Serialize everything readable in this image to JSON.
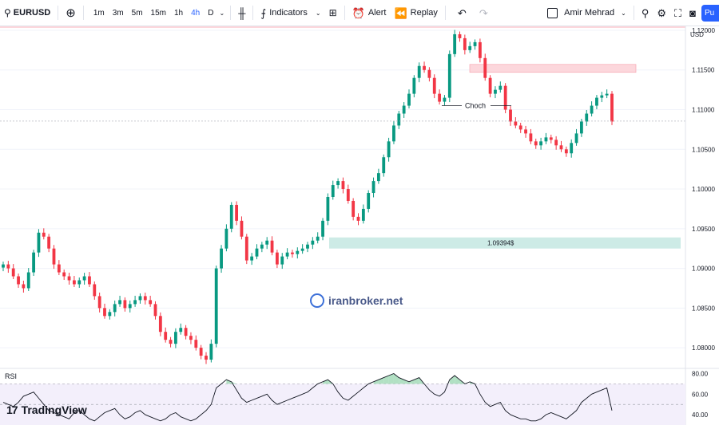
{
  "toolbar": {
    "symbol": "EURUSD",
    "timeframes": [
      "1m",
      "3m",
      "5m",
      "15m",
      "1h",
      "4h",
      "D"
    ],
    "active_timeframe": "4h",
    "indicators_label": "Indicators",
    "alert_label": "Alert",
    "replay_label": "Replay",
    "user_name": "Amir Mehrad",
    "publish_label": "Pu",
    "icons": [
      "search-icon",
      "add-symbol-icon",
      "chart-type-icon",
      "indicators-icon",
      "templates-icon",
      "alert-icon",
      "replay-icon",
      "undo-icon",
      "redo-icon",
      "layout-checkbox",
      "zoom-icon",
      "settings-icon",
      "fullscreen-icon",
      "camera-icon"
    ]
  },
  "chart_data": {
    "type": "candlestick",
    "currency": "USD",
    "y_ticks": [
      "1.12000",
      "1.11500",
      "1.11000",
      "1.10500",
      "1.10000",
      "1.09500",
      "1.09000",
      "1.08500",
      "1.08000"
    ],
    "ylim": [
      1.0775,
      1.1205
    ],
    "last_price": "1.10856",
    "annotations": {
      "choch_label": "Choch",
      "zone_price_label": "1.09394$",
      "supply_zone": [
        1.1147,
        1.1157
      ],
      "demand_zone": [
        1.0925,
        1.0939
      ],
      "top_zone": [
        1.1203,
        1.1222
      ]
    },
    "close_path": [
      1.0905,
      1.09,
      1.089,
      1.088,
      1.0875,
      1.0895,
      1.092,
      1.0945,
      1.094,
      1.0925,
      1.0905,
      1.0895,
      1.089,
      1.0885,
      1.088,
      1.0885,
      1.089,
      1.088,
      1.0865,
      1.085,
      1.084,
      1.0845,
      1.0855,
      1.086,
      1.085,
      1.0855,
      1.086,
      1.0865,
      1.086,
      1.0855,
      1.084,
      1.082,
      1.081,
      1.0805,
      1.082,
      1.0825,
      1.0815,
      1.081,
      1.08,
      1.079,
      1.0785,
      1.0805,
      1.09,
      1.0925,
      1.095,
      1.098,
      1.096,
      1.094,
      1.091,
      1.0915,
      1.0925,
      1.093,
      1.0935,
      1.092,
      1.0905,
      1.0915,
      1.092,
      1.0918,
      1.0922,
      1.0925,
      1.093,
      1.0935,
      1.094,
      1.096,
      1.099,
      1.1005,
      1.101,
      1.1,
      1.0985,
      1.0965,
      1.096,
      1.0975,
      1.0995,
      1.101,
      1.102,
      1.104,
      1.106,
      1.108,
      1.1095,
      1.1105,
      1.112,
      1.114,
      1.1155,
      1.115,
      1.114,
      1.112,
      1.111,
      1.1115,
      1.117,
      1.1195,
      1.119,
      1.1175,
      1.118,
      1.1185,
      1.1165,
      1.114,
      1.112,
      1.1125,
      1.113,
      1.11,
      1.1085,
      1.108,
      1.1075,
      1.107,
      1.106,
      1.1055,
      1.106,
      1.1065,
      1.1062,
      1.1055,
      1.105,
      1.1045,
      1.1058,
      1.107,
      1.1085,
      1.1095,
      1.1105,
      1.1115,
      1.1118,
      1.112,
      1.1085
    ],
    "rsi": {
      "label": "RSI",
      "y_ticks": [
        "80.00",
        "60.00",
        "40.00"
      ],
      "ylim": [
        30,
        85
      ],
      "upper": 70,
      "lower": 30,
      "values": [
        52,
        50,
        48,
        52,
        58,
        60,
        62,
        56,
        50,
        44,
        42,
        40,
        38,
        36,
        42,
        44,
        40,
        36,
        34,
        38,
        42,
        44,
        46,
        40,
        36,
        38,
        42,
        44,
        40,
        38,
        36,
        34,
        36,
        40,
        42,
        38,
        36,
        34,
        36,
        40,
        44,
        50,
        66,
        70,
        74,
        72,
        64,
        56,
        52,
        54,
        56,
        58,
        60,
        54,
        50,
        52,
        54,
        56,
        58,
        60,
        62,
        66,
        70,
        72,
        74,
        70,
        62,
        56,
        54,
        58,
        62,
        66,
        70,
        72,
        74,
        76,
        78,
        80,
        76,
        74,
        72,
        74,
        76,
        70,
        64,
        60,
        58,
        62,
        74,
        78,
        74,
        70,
        72,
        70,
        60,
        52,
        48,
        50,
        52,
        44,
        40,
        38,
        36,
        36,
        34,
        34,
        36,
        40,
        42,
        40,
        38,
        36,
        40,
        44,
        52,
        56,
        60,
        62,
        64,
        66,
        44
      ]
    }
  },
  "watermark": {
    "text": "iranbroker.net"
  },
  "footer": {
    "brand": "TradingView"
  },
  "colors": {
    "up": "#089981",
    "down": "#f23645",
    "grid": "#f0f3fa",
    "supply_zone": "#fcd7dc",
    "demand_zone": "#cdebe6",
    "price_tag": "#22ab94",
    "rsi_line": "#131722",
    "rsi_overbought": "#9ed8b4"
  }
}
